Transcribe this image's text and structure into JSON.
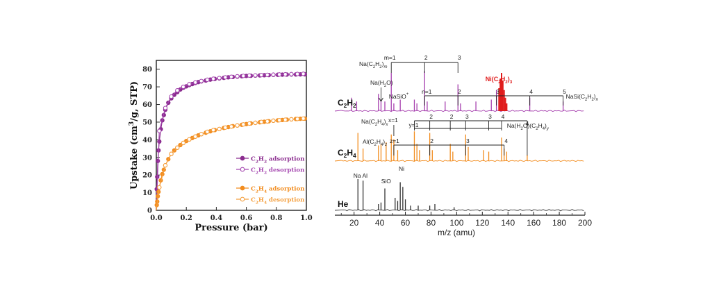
{
  "chart_data": [
    {
      "type": "line",
      "xlabel": "Pressure (bar)",
      "ylabel": "Upstake (cm³/g, STP)",
      "xlim": [
        0,
        1.0
      ],
      "ylim": [
        0,
        85
      ],
      "xticks": [
        "0.0",
        "0.2",
        "0.4",
        "0.6",
        "0.8",
        "1.0"
      ],
      "yticks": [
        "0",
        "10",
        "20",
        "30",
        "40",
        "50",
        "60",
        "70",
        "80"
      ],
      "legend": "right-middle",
      "series": [
        {
          "name_main": "C",
          "name_sub": "2",
          "name_main2": "H",
          "name_sub2": "2",
          "name_rest": " adsorption",
          "marker": "filled",
          "color": "#8b2c8f",
          "x": [
            0.003,
            0.006,
            0.01,
            0.015,
            0.02,
            0.03,
            0.04,
            0.05,
            0.06,
            0.08,
            0.1,
            0.12,
            0.14,
            0.16,
            0.18,
            0.2,
            0.22,
            0.24,
            0.26,
            0.28,
            0.3,
            0.33,
            0.36,
            0.39,
            0.42,
            0.45,
            0.48,
            0.51,
            0.54,
            0.57,
            0.6,
            0.63,
            0.66,
            0.69,
            0.72,
            0.75,
            0.78,
            0.81,
            0.84,
            0.87,
            0.9,
            0.93,
            0.96,
            0.99
          ],
          "y": [
            12,
            19,
            28,
            34,
            39,
            46,
            51,
            54,
            57,
            61,
            63.5,
            65.5,
            67,
            68.5,
            69.5,
            70.3,
            71,
            71.6,
            72.2,
            72.7,
            73.1,
            73.6,
            74.1,
            74.5,
            74.8,
            75.1,
            75.4,
            75.6,
            75.8,
            76,
            76.2,
            76.3,
            76.4,
            76.5,
            76.6,
            76.7,
            76.8,
            76.85,
            76.9,
            76.95,
            77,
            77,
            77.05,
            77.1
          ]
        },
        {
          "name_main": "C",
          "name_sub": "2",
          "name_main2": "H",
          "name_sub2": "2",
          "name_rest": " desorption",
          "marker": "open",
          "color": "#a548b0",
          "x": [
            0.02,
            0.06,
            0.1,
            0.14,
            0.18,
            0.22,
            0.26,
            0.3,
            0.34,
            0.38,
            0.42,
            0.46,
            0.5,
            0.54,
            0.58,
            0.62,
            0.66,
            0.7,
            0.74,
            0.78,
            0.82,
            0.86,
            0.9,
            0.94,
            0.98
          ],
          "y": [
            45,
            58,
            64.5,
            68,
            70,
            71.5,
            72.5,
            73.3,
            74,
            74.6,
            75,
            75.4,
            75.7,
            76,
            76.2,
            76.4,
            76.5,
            76.7,
            76.8,
            76.9,
            77,
            77.1,
            77.2,
            77.3,
            77.4
          ]
        },
        {
          "name_main": "C",
          "name_sub": "2",
          "name_main2": "H",
          "name_sub2": "4",
          "name_rest": " adsorption",
          "marker": "filled",
          "color": "#f28c1e",
          "x": [
            0.003,
            0.006,
            0.01,
            0.015,
            0.02,
            0.03,
            0.04,
            0.05,
            0.06,
            0.08,
            0.1,
            0.12,
            0.14,
            0.16,
            0.18,
            0.2,
            0.22,
            0.24,
            0.26,
            0.28,
            0.3,
            0.33,
            0.36,
            0.39,
            0.42,
            0.45,
            0.48,
            0.51,
            0.54,
            0.57,
            0.6,
            0.63,
            0.66,
            0.69,
            0.72,
            0.75,
            0.78,
            0.81,
            0.84,
            0.87,
            0.9,
            0.93,
            0.96,
            0.99
          ],
          "y": [
            3,
            5,
            8,
            10.5,
            13,
            17,
            20.5,
            23,
            25.5,
            29,
            32,
            34,
            35.5,
            37,
            38.2,
            39.3,
            40.2,
            41,
            41.8,
            42.5,
            43.2,
            44,
            44.8,
            45.5,
            46.1,
            46.7,
            47.2,
            47.7,
            48.1,
            48.5,
            48.9,
            49.3,
            49.6,
            49.9,
            50.2,
            50.5,
            50.8,
            51,
            51.2,
            51.4,
            51.6,
            51.8,
            51.9,
            52
          ]
        },
        {
          "name_main": "C",
          "name_sub": "2",
          "name_main2": "H",
          "name_sub2": "4",
          "name_rest": " desorption",
          "marker": "open",
          "color": "#f4a040",
          "x": [
            0.02,
            0.06,
            0.1,
            0.14,
            0.18,
            0.22,
            0.26,
            0.3,
            0.34,
            0.38,
            0.42,
            0.46,
            0.5,
            0.54,
            0.58,
            0.62,
            0.66,
            0.7,
            0.74,
            0.78,
            0.82,
            0.86,
            0.9,
            0.94,
            0.98
          ],
          "y": [
            13,
            25.5,
            32,
            35.5,
            38.2,
            40.2,
            41.8,
            43.2,
            44.5,
            45.5,
            46.1,
            46.9,
            47.5,
            48.1,
            48.7,
            49.2,
            49.6,
            50.1,
            50.4,
            50.8,
            51.1,
            51.4,
            51.6,
            51.8,
            52
          ]
        }
      ]
    },
    {
      "type": "line",
      "xlabel": "m/z (amu)",
      "xlim": [
        5,
        200
      ],
      "xticks": [
        "20",
        "40",
        "60",
        "80",
        "100",
        "120",
        "140",
        "160",
        "180",
        "200"
      ],
      "panels": [
        {
          "name_main": "C",
          "name_sub": "2",
          "name_main2": "H",
          "name_sub2": "2",
          "color": "#a63fae",
          "peaks": [
            [
              18,
              0.35
            ],
            [
              22,
              0.25
            ],
            [
              39,
              0.45
            ],
            [
              41,
              0.3
            ],
            [
              44,
              0.25
            ],
            [
              49,
              1.0
            ],
            [
              51,
              0.2
            ],
            [
              56,
              0.3
            ],
            [
              67,
              0.3
            ],
            [
              69,
              0.2
            ],
            [
              75,
              1.05
            ],
            [
              77,
              0.25
            ],
            [
              91,
              0.25
            ],
            [
              101,
              0.7
            ],
            [
              103,
              0.2
            ],
            [
              115,
              0.25
            ],
            [
              127,
              0.3
            ],
            [
              131,
              0.55
            ],
            [
              157,
              0.35
            ],
            [
              183,
              0.25
            ]
          ],
          "highlight_peaks": [
            [
              133,
              0.6
            ],
            [
              134,
              0.85
            ],
            [
              135,
              1.0
            ],
            [
              136,
              0.8
            ],
            [
              137,
              0.55
            ],
            [
              138,
              0.35
            ],
            [
              139,
              0.2
            ]
          ],
          "highlight_color": "#e01b1b"
        },
        {
          "name_main": "C",
          "name_sub": "2",
          "name_main2": "H",
          "name_sub2": "4",
          "color": "#f28c1e",
          "peaks": [
            [
              23,
              0.9
            ],
            [
              27,
              0.4
            ],
            [
              39,
              0.5
            ],
            [
              41,
              0.55
            ],
            [
              45,
              0.6
            ],
            [
              49,
              0.85
            ],
            [
              51,
              0.7
            ],
            [
              54,
              0.35
            ],
            [
              67,
              0.95
            ],
            [
              69,
              0.55
            ],
            [
              71,
              0.35
            ],
            [
              79,
              0.9
            ],
            [
              81,
              0.35
            ],
            [
              95,
              0.55
            ],
            [
              97,
              0.3
            ],
            [
              107,
              0.85
            ],
            [
              109,
              0.45
            ],
            [
              121,
              0.35
            ],
            [
              125,
              0.3
            ],
            [
              135,
              0.75
            ],
            [
              137,
              0.4
            ],
            [
              139,
              0.3
            ],
            [
              155,
              0.2
            ]
          ]
        },
        {
          "name": "He",
          "color": "#333333",
          "peaks": [
            [
              23,
              1.0
            ],
            [
              27,
              0.95
            ],
            [
              39,
              0.2
            ],
            [
              41,
              0.25
            ],
            [
              44,
              0.7
            ],
            [
              52,
              0.4
            ],
            [
              54,
              0.3
            ],
            [
              56,
              0.9
            ],
            [
              58,
              0.75
            ],
            [
              60,
              0.35
            ],
            [
              64,
              0.15
            ],
            [
              70,
              0.15
            ],
            [
              79,
              0.15
            ],
            [
              83,
              0.2
            ],
            [
              98,
              0.1
            ]
          ]
        }
      ],
      "annotations": {
        "c2h2": {
          "series_m": "Na(C",
          "series_m_sub": "2",
          "series_m_mid": "H",
          "series_m_sub2": "2",
          "series_m_end": ")",
          "series_m_var": "m",
          "m_labels": [
            "m=1",
            "2",
            "3"
          ],
          "na_h2o": "Na(H",
          "na_h2o_sub": "2",
          "na_h2o_end": "O)",
          "nasio": "NaSiO",
          "nasio_sup": "+",
          "n_labels": [
            "n=1",
            "2",
            "3",
            "4",
            "5"
          ],
          "nasi": "NaSi(C",
          "nasi_sub": "2",
          "nasi_mid": "H",
          "nasi_sub2": "2",
          "nasi_end": ")",
          "nasi_var": "n",
          "ni": "Ni(C",
          "ni_sub": "2",
          "ni_mid": "H",
          "ni_sub2": "2",
          "ni_end": ")",
          "ni_sub3": "3"
        },
        "c2h4": {
          "na_x": "Na(C",
          "na_x_sub": "2",
          "na_x_mid": "H",
          "na_x_sub2": "4",
          "na_x_end": ")",
          "na_x_var": "x",
          "x_label": "x=1",
          "y_labels": [
            "y=1",
            "2",
            "3",
            "3",
            "4"
          ],
          "top4": "4",
          "al": "Al(C",
          "al_sub": "2",
          "al_mid": "H",
          "al_sub2": "4",
          "al_end": ")",
          "al_var": "z",
          "z_labels": [
            "z=1",
            "2",
            "3",
            "4"
          ],
          "nah2o": "Na(H",
          "nah2o_sub": "2",
          "nah2o_mid": "O)(C",
          "nah2o_sub2": "2",
          "nah2o_mid2": "H",
          "nah2o_sub3": "4",
          "nah2o_end": ")",
          "nah2o_var": "y"
        },
        "he": {
          "na_al": "Na Al",
          "sio": "SiO",
          "ni": "Ni"
        }
      }
    }
  ]
}
